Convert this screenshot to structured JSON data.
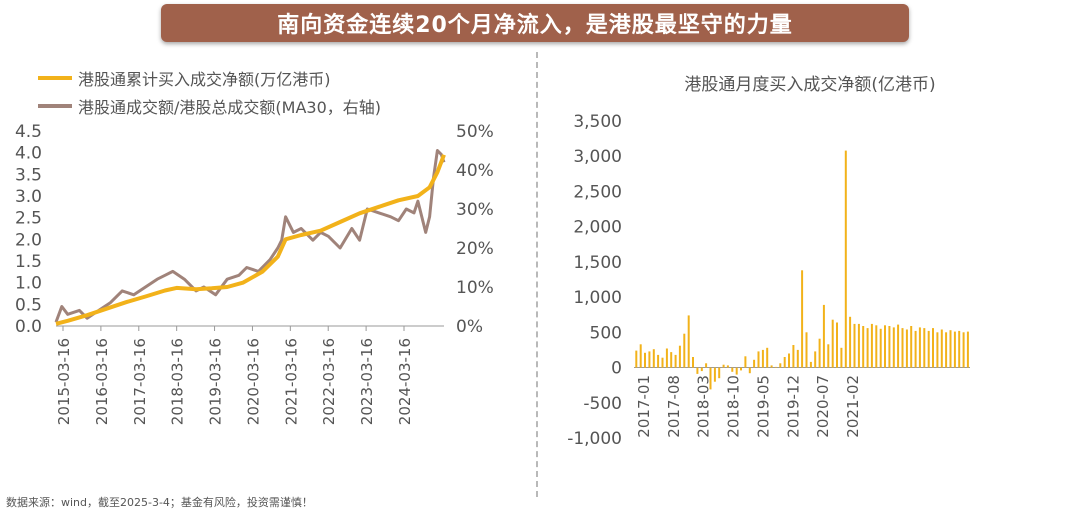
{
  "banner_title": "南向资金连续20个月净流入，是港股最坚守的力量",
  "footnote": "数据来源：wind，截至2025-3-4；基金有风险，投资需谨慎！",
  "colors": {
    "banner": "#a0614b",
    "cumulative": "#f2b21a",
    "ratio": "#a0837a",
    "bars": "#f2b21a"
  },
  "chart_data": [
    {
      "type": "line",
      "legend": [
        {
          "name": "港股通累计买入成交净额(万亿港币)",
          "color": "#f2b21a"
        },
        {
          "name": "港股通成交额/港股总成交额(MA30，右轴)",
          "color": "#a0837a"
        }
      ],
      "x_tick_labels": [
        "2015-03-16",
        "2016-03-16",
        "2017-03-16",
        "2018-03-16",
        "2019-03-16",
        "2020-03-16",
        "2021-03-16",
        "2022-03-16",
        "2023-03-16",
        "2024-03-16"
      ],
      "y_left_ticks": [
        "0.0",
        "0.5",
        "1.0",
        "1.5",
        "2.0",
        "2.5",
        "3.0",
        "3.5",
        "4.0",
        "4.5"
      ],
      "y_left_lim": [
        0,
        4.5
      ],
      "y_right_ticks": [
        "0%",
        "10%",
        "20%",
        "30%",
        "40%",
        "50%"
      ],
      "y_right_lim": [
        0,
        50
      ],
      "x_range": [
        2015.2,
        2025.17
      ],
      "series": [
        {
          "name": "港股通累计买入成交净额(万亿港币)",
          "axis": "left",
          "x": [
            2015.2,
            2015.5,
            2016.0,
            2016.5,
            2017.0,
            2017.5,
            2018.0,
            2018.3,
            2018.8,
            2019.2,
            2019.6,
            2020.0,
            2020.5,
            2020.9,
            2021.1,
            2021.5,
            2022.0,
            2022.5,
            2023.0,
            2023.5,
            2024.0,
            2024.5,
            2024.8,
            2025.0,
            2025.17
          ],
          "values": [
            0.05,
            0.12,
            0.25,
            0.4,
            0.55,
            0.68,
            0.82,
            0.88,
            0.85,
            0.87,
            0.9,
            1.0,
            1.25,
            1.6,
            2.0,
            2.1,
            2.2,
            2.4,
            2.6,
            2.75,
            2.9,
            3.0,
            3.2,
            3.55,
            3.95
          ]
        },
        {
          "name": "港股通成交额/港股总成交额(MA30，右轴)",
          "axis": "right",
          "x": [
            2015.2,
            2015.35,
            2015.5,
            2015.8,
            2016.0,
            2016.3,
            2016.6,
            2016.9,
            2017.2,
            2017.5,
            2017.8,
            2018.0,
            2018.2,
            2018.5,
            2018.8,
            2019.0,
            2019.3,
            2019.6,
            2019.9,
            2020.1,
            2020.4,
            2020.7,
            2020.9,
            2021.0,
            2021.1,
            2021.3,
            2021.5,
            2021.8,
            2022.0,
            2022.2,
            2022.5,
            2022.8,
            2023.0,
            2023.2,
            2023.5,
            2023.8,
            2024.0,
            2024.2,
            2024.4,
            2024.5,
            2024.7,
            2024.8,
            2024.9,
            2025.0,
            2025.1,
            2025.17
          ],
          "values": [
            1,
            5,
            3,
            4,
            2,
            4,
            6,
            9,
            8,
            10,
            12,
            13,
            14,
            12,
            9,
            10,
            8,
            12,
            13,
            15,
            14,
            17,
            20,
            22,
            28,
            24,
            25,
            22,
            24,
            23,
            20,
            25,
            22,
            30,
            29,
            28,
            27,
            30,
            29,
            32,
            24,
            28,
            38,
            45,
            44,
            42
          ]
        }
      ]
    },
    {
      "type": "bar",
      "title": "港股通月度买入成交净额(亿港币)",
      "x_tick_labels": [
        "2017-01",
        "2017-08",
        "2018-03",
        "2018-10",
        "2019-05",
        "2019-12",
        "2020-07",
        "2021-02"
      ],
      "y_ticks": [
        "3,500",
        "3,000",
        "2,500",
        "2,000",
        "1,500",
        "1,000",
        "500",
        "0",
        "-500",
        "-1,000"
      ],
      "ylim": [
        -1000,
        3500
      ],
      "categories_start": "2017-01",
      "values": [
        240,
        330,
        210,
        230,
        260,
        180,
        140,
        270,
        220,
        180,
        310,
        480,
        740,
        150,
        -90,
        -50,
        60,
        -310,
        -200,
        -150,
        40,
        30,
        -60,
        -100,
        -40,
        160,
        -80,
        110,
        230,
        250,
        280,
        30,
        10,
        60,
        150,
        200,
        320,
        250,
        1380,
        500,
        80,
        230,
        410,
        890,
        330,
        680,
        640,
        280,
        3080,
        720,
        620,
        620,
        590,
        560,
        620,
        600,
        550,
        600,
        590,
        570,
        610,
        560,
        540,
        590,
        520,
        570,
        560,
        520,
        560,
        500,
        540,
        500,
        530,
        510,
        520,
        500,
        510
      ]
    }
  ]
}
